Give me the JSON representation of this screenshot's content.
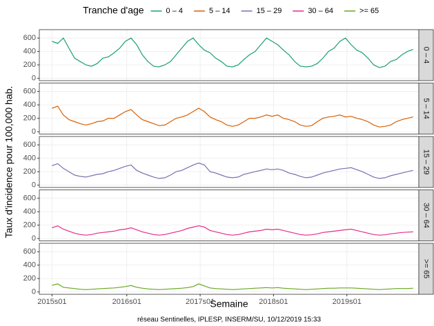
{
  "chart_data": {
    "type": "line",
    "legend_title": "Tranche d'age",
    "x_label": "Semaine",
    "y_label": "Taux d'incidence pour 100,000 hab.",
    "caption": "réseau Sentinelles, IPLESP, INSERM/SU, 10/12/2019 15:33",
    "legend": "top",
    "grid": true,
    "x": [
      0,
      4,
      8,
      12,
      16,
      20,
      24,
      28,
      32,
      36,
      40,
      44,
      48,
      52,
      56,
      60,
      64,
      68,
      72,
      76,
      80,
      84,
      88,
      92,
      96,
      100,
      104,
      108,
      112,
      116,
      120,
      124,
      128,
      132,
      136,
      140,
      144,
      148,
      152,
      156,
      160,
      164,
      168,
      172,
      176,
      180,
      184,
      188,
      192,
      196,
      200,
      204,
      208,
      212,
      216,
      220,
      224,
      228,
      232,
      236,
      240,
      244,
      248,
      252,
      256
    ],
    "xlim": [
      -9,
      260
    ],
    "xticks": [
      {
        "value": 0,
        "label": "2015s01"
      },
      {
        "value": 53,
        "label": "2016s01"
      },
      {
        "value": 105,
        "label": "2017s01"
      },
      {
        "value": 157,
        "label": "2018s01"
      },
      {
        "value": 209,
        "label": "2019s01"
      }
    ],
    "ylim": [
      -35,
      725
    ],
    "yticks": [
      0,
      200,
      400,
      600
    ],
    "series": [
      {
        "name": "0 – 4",
        "color": "#1b9e77",
        "values": [
          550,
          520,
          600,
          450,
          300,
          250,
          200,
          180,
          220,
          300,
          320,
          380,
          450,
          550,
          600,
          500,
          350,
          250,
          180,
          170,
          200,
          250,
          350,
          450,
          550,
          600,
          500,
          420,
          380,
          300,
          250,
          180,
          170,
          200,
          280,
          350,
          400,
          500,
          600,
          550,
          500,
          420,
          350,
          250,
          180,
          170,
          180,
          220,
          300,
          400,
          450,
          550,
          600,
          500,
          420,
          380,
          300,
          200,
          160,
          180,
          250,
          280,
          350,
          400,
          430
        ]
      },
      {
        "name": "5 – 14",
        "color": "#d95f02",
        "values": [
          350,
          380,
          250,
          180,
          150,
          120,
          100,
          120,
          150,
          160,
          200,
          200,
          250,
          300,
          330,
          250,
          180,
          150,
          120,
          90,
          100,
          150,
          200,
          220,
          250,
          300,
          350,
          300,
          220,
          180,
          150,
          100,
          80,
          100,
          150,
          200,
          200,
          220,
          250,
          230,
          250,
          200,
          180,
          150,
          100,
          80,
          90,
          150,
          200,
          220,
          230,
          250,
          220,
          230,
          200,
          180,
          150,
          100,
          70,
          80,
          100,
          150,
          180,
          200,
          220
        ]
      },
      {
        "name": "15 – 29",
        "color": "#7570b3",
        "values": [
          290,
          320,
          250,
          200,
          150,
          130,
          120,
          140,
          160,
          170,
          200,
          220,
          250,
          280,
          300,
          220,
          180,
          150,
          120,
          100,
          110,
          150,
          200,
          220,
          260,
          300,
          330,
          300,
          200,
          180,
          150,
          120,
          110,
          120,
          160,
          180,
          200,
          220,
          240,
          230,
          240,
          220,
          180,
          160,
          130,
          110,
          120,
          150,
          180,
          200,
          220,
          240,
          250,
          260,
          230,
          200,
          160,
          120,
          100,
          110,
          140,
          160,
          180,
          200,
          220
        ]
      },
      {
        "name": "30 – 64",
        "color": "#e7298a",
        "values": [
          160,
          190,
          140,
          110,
          80,
          60,
          50,
          60,
          80,
          90,
          100,
          110,
          130,
          140,
          160,
          130,
          100,
          80,
          60,
          50,
          60,
          80,
          100,
          120,
          150,
          170,
          190,
          170,
          120,
          100,
          80,
          60,
          50,
          60,
          80,
          100,
          110,
          120,
          140,
          130,
          140,
          120,
          100,
          80,
          60,
          50,
          55,
          70,
          90,
          100,
          110,
          120,
          130,
          140,
          120,
          100,
          80,
          60,
          50,
          55,
          70,
          80,
          90,
          95,
          100
        ]
      },
      {
        "name": ">= 65",
        "color": "#66a61e",
        "values": [
          100,
          120,
          70,
          60,
          50,
          40,
          35,
          40,
          45,
          50,
          55,
          60,
          70,
          80,
          95,
          70,
          55,
          45,
          40,
          35,
          40,
          45,
          50,
          55,
          65,
          80,
          120,
          90,
          60,
          50,
          45,
          40,
          35,
          40,
          45,
          50,
          55,
          60,
          65,
          60,
          65,
          55,
          50,
          45,
          40,
          35,
          40,
          45,
          50,
          55,
          55,
          60,
          60,
          60,
          55,
          50,
          45,
          40,
          35,
          40,
          45,
          50,
          50,
          50,
          55
        ]
      }
    ]
  }
}
